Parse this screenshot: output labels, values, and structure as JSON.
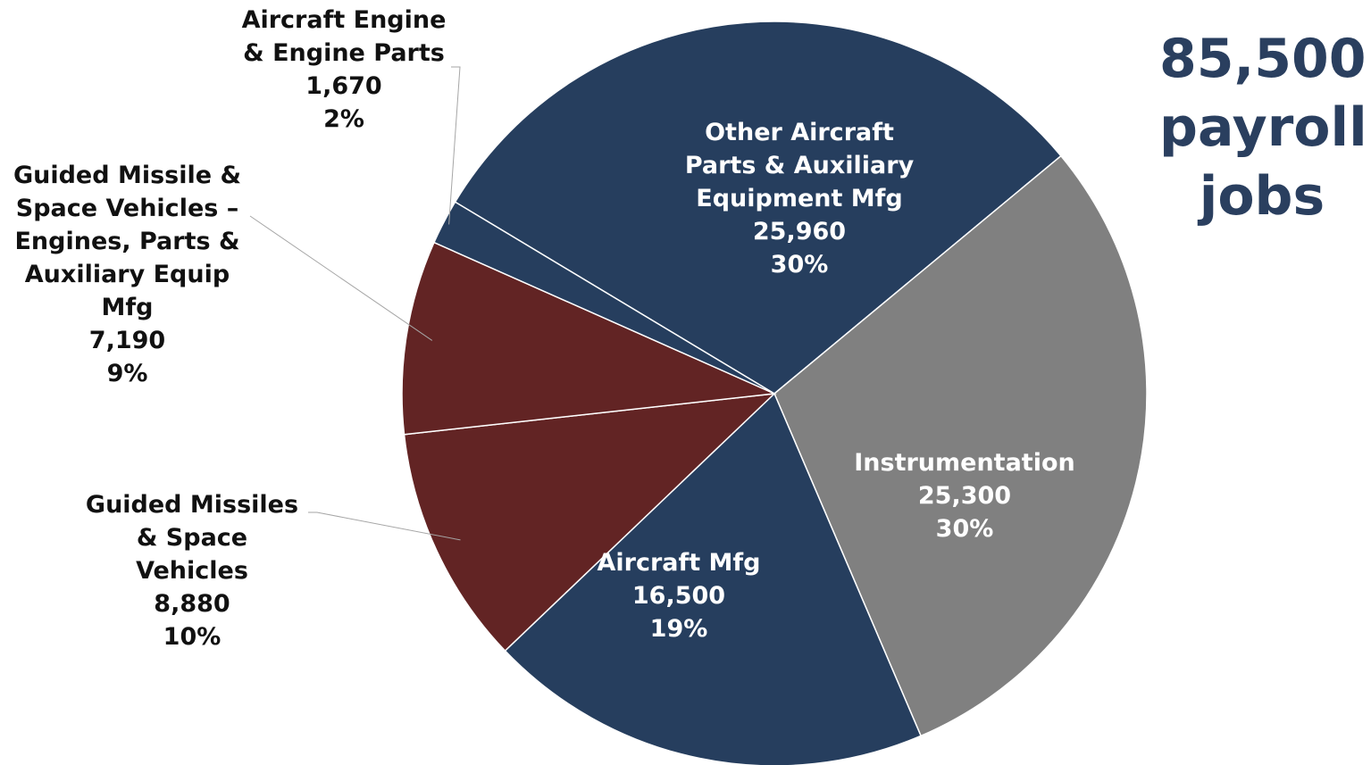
{
  "chart_data": {
    "type": "pie",
    "slices": [
      {
        "label_lines": [
          "Other Aircraft",
          "Parts & Auxiliary",
          "Equipment Mfg"
        ],
        "value_text": "25,960",
        "value": 25960,
        "pct_text": "30%",
        "color": "#263e5e",
        "label_placement": "inside"
      },
      {
        "label_lines": [
          "Instrumentation"
        ],
        "value_text": "25,300",
        "value": 25300,
        "pct_text": "30%",
        "color": "#808080",
        "label_placement": "inside"
      },
      {
        "label_lines": [
          "Aircraft Mfg"
        ],
        "value_text": "16,500",
        "value": 16500,
        "pct_text": "19%",
        "color": "#263e5e",
        "label_placement": "inside"
      },
      {
        "label_lines": [
          "Guided Missiles",
          "& Space",
          "Vehicles"
        ],
        "value_text": "8,880",
        "value": 8880,
        "pct_text": "10%",
        "color": "#622424",
        "label_placement": "outside"
      },
      {
        "label_lines": [
          "Guided Missile &",
          "Space Vehicles –",
          "Engines, Parts &",
          "Auxiliary Equip",
          "Mfg"
        ],
        "value_text": "7,190",
        "value": 7190,
        "pct_text": "9%",
        "color": "#622424",
        "label_placement": "outside"
      },
      {
        "label_lines": [
          "Aircraft Engine",
          "& Engine Parts"
        ],
        "value_text": "1,670",
        "value": 1670,
        "pct_text": "2%",
        "color": "#263e5e",
        "label_placement": "outside"
      }
    ],
    "total": {
      "lines": [
        "85,500",
        "payroll",
        "jobs"
      ],
      "color": "#2a3f5f"
    }
  }
}
